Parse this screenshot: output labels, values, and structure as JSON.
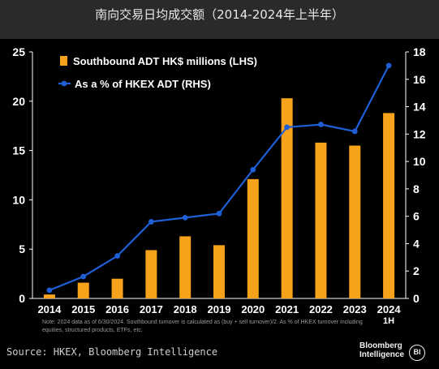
{
  "title": "南向交易日均成交额（2014-2024年上半年）",
  "chart_data": {
    "type": "bar",
    "categories": [
      "2014",
      "2015",
      "2016",
      "2017",
      "2018",
      "2019",
      "2020",
      "2021",
      "2022",
      "2023",
      "2024"
    ],
    "category_sublabels": [
      "",
      "",
      "",
      "",
      "",
      "",
      "",
      "",
      "",
      "",
      "1H"
    ],
    "series": [
      {
        "name": "Southbound ADT HK$ millions (LHS)",
        "type": "bar",
        "axis": "left",
        "color": "#f7a21b",
        "values": [
          0.4,
          1.6,
          2.0,
          4.9,
          6.3,
          5.4,
          12.1,
          20.3,
          15.8,
          15.5,
          18.8
        ]
      },
      {
        "name": "As a % of HKEX ADT (RHS)",
        "type": "line",
        "axis": "right",
        "color": "#1f5fd6",
        "values": [
          0.6,
          1.6,
          3.1,
          5.6,
          5.9,
          6.2,
          9.4,
          12.5,
          12.7,
          12.2,
          17.0
        ]
      }
    ],
    "y_left": {
      "range": [
        0,
        25
      ],
      "ticks": [
        "0",
        "5",
        "10",
        "15",
        "20",
        "25"
      ]
    },
    "y_right": {
      "range": [
        0,
        18
      ],
      "ticks": [
        "0",
        "2",
        "4",
        "6",
        "8",
        "10",
        "12",
        "14",
        "16",
        "18"
      ]
    },
    "legend_position": "top-left",
    "grid": false
  },
  "note": "Note: 2024 data as of 6/30/2024. Southbound turnover is calculated as (buy + sell turnover)/2. As % of HKEX turnover including equities, structured products, ETFs, etc.",
  "source": "Source: HKEX, Bloomberg Intelligence",
  "brand": {
    "line1": "Bloomberg",
    "line2": "Intelligence",
    "mark": "BI"
  }
}
